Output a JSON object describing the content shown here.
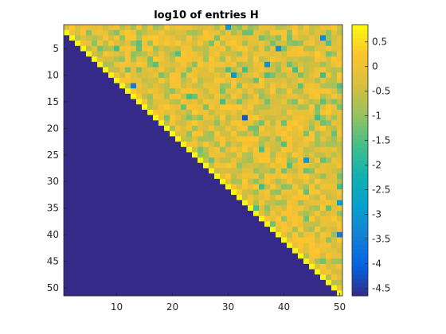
{
  "chart_data": {
    "type": "heatmap",
    "title": "log10 of entries H",
    "xlabel": "",
    "ylabel": "",
    "rows": 51,
    "cols": 50,
    "x_range": [
      0.5,
      50.5
    ],
    "y_range": [
      0.5,
      51.5
    ],
    "y_reversed": true,
    "x_ticks": [
      10,
      20,
      30,
      40,
      50
    ],
    "y_ticks": [
      5,
      10,
      15,
      20,
      25,
      30,
      35,
      40,
      45,
      50
    ],
    "color_range": [
      -4.65,
      0.85
    ],
    "colorbar_ticks": [
      0.5,
      0,
      -0.5,
      -1,
      -1.5,
      -2,
      -2.5,
      -3,
      -3.5,
      -4,
      -4.5
    ],
    "colormap": "parula",
    "structure": {
      "description_of_values": "upper Hessenberg matrix",
      "below_subdiagonal_value": -4.65,
      "subdiagonal_value": 0.8,
      "upper_triangle_typical_range": [
        -2.5,
        0.3
      ]
    },
    "outliers": [
      {
        "row": 18,
        "col": 33,
        "value": -4.2
      },
      {
        "row": 12,
        "col": 13,
        "value": -3.5
      },
      {
        "row": 40,
        "col": 50,
        "value": -3.6
      },
      {
        "row": 34,
        "col": 50,
        "value": -2.8
      },
      {
        "row": 5,
        "col": 39,
        "value": -3.2
      },
      {
        "row": 3,
        "col": 47,
        "value": -3.3
      },
      {
        "row": 8,
        "col": 37,
        "value": -3.1
      },
      {
        "row": 26,
        "col": 44,
        "value": -3.0
      },
      {
        "row": 10,
        "col": 31,
        "value": -3.0
      },
      {
        "row": 1,
        "col": 30,
        "value": -2.9
      }
    ],
    "grid": false,
    "legend": "colorbar-right"
  }
}
